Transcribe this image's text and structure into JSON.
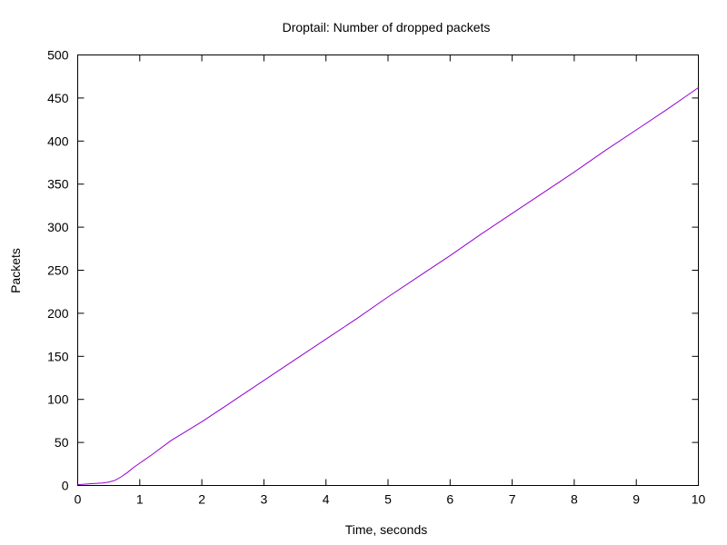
{
  "chart_data": {
    "type": "line",
    "title": "Droptail: Number of dropped packets",
    "xlabel": "Time, seconds",
    "ylabel": "Packets",
    "xlim": [
      0,
      10
    ],
    "ylim": [
      0,
      500
    ],
    "xticks": [
      0,
      1,
      2,
      3,
      4,
      5,
      6,
      7,
      8,
      9,
      10
    ],
    "yticks": [
      0,
      50,
      100,
      150,
      200,
      250,
      300,
      350,
      400,
      450,
      500
    ],
    "grid": false,
    "line_color": "#9400d3",
    "series": [
      {
        "x": [
          0,
          0.2,
          0.4,
          0.5,
          0.6,
          0.7,
          0.8,
          0.9,
          1.0,
          1.2,
          1.5,
          2,
          2.5,
          3,
          3.5,
          4,
          4.5,
          5,
          5.5,
          6,
          6.5,
          7,
          7.5,
          8,
          8.5,
          9,
          9.5,
          10
        ],
        "y": [
          1,
          2,
          3,
          4,
          6,
          10,
          15,
          21,
          26,
          36,
          52,
          74,
          98,
          122,
          146,
          170,
          194,
          219,
          243,
          267,
          292,
          316,
          340,
          364,
          389,
          413,
          437,
          462
        ]
      }
    ]
  }
}
